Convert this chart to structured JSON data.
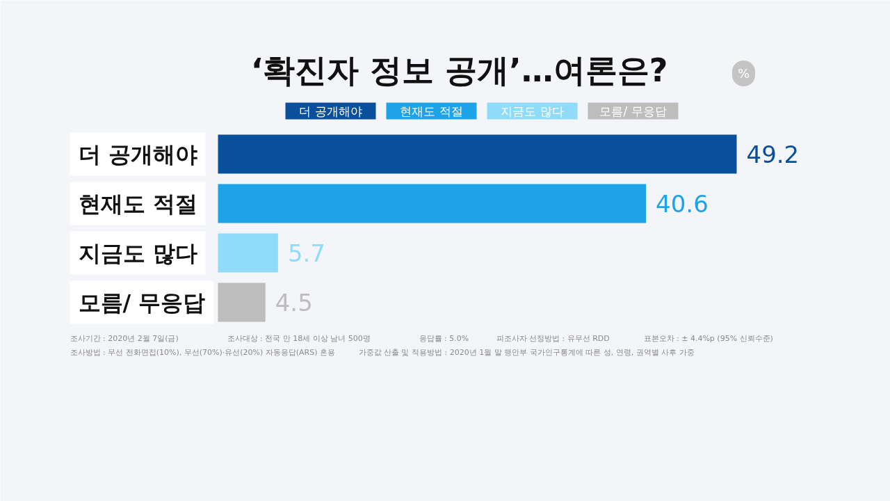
{
  "chart_data": {
    "type": "bar",
    "orientation": "horizontal",
    "title": "‘확진자 정보 공개’…여론은?",
    "categories": [
      "더 공개해야",
      "현재도 적절",
      "지금도 많다",
      "모름/ 무응답"
    ],
    "values": [
      49.2,
      40.6,
      5.7,
      4.5
    ],
    "colors": [
      "#0a4f9c",
      "#1fa3e8",
      "#90dcf8",
      "#bdbdbd"
    ],
    "data_labels": true,
    "annotations": [
      "%",
      "조사기간 : 2020년 2월 7일(금)",
      "조사대상 : 전국 만 18세 이상 남녀 500명",
      "응답률 : 5.0%",
      "피조사자 선정방법 : 유무선 RDD",
      "표본오차 : ± 4.4%p (95% 신뢰수준)",
      "조사방법 : 무선 전화면접(10%), 무선(70%)·유선(20%) 자동응답(ARS) 혼용",
      "가중값 산출 및 적용방법 : 2020년 1월 말 행안부 국가인구통계에 따른 성, 연령, 권역별 사후 가중"
    ]
  }
}
